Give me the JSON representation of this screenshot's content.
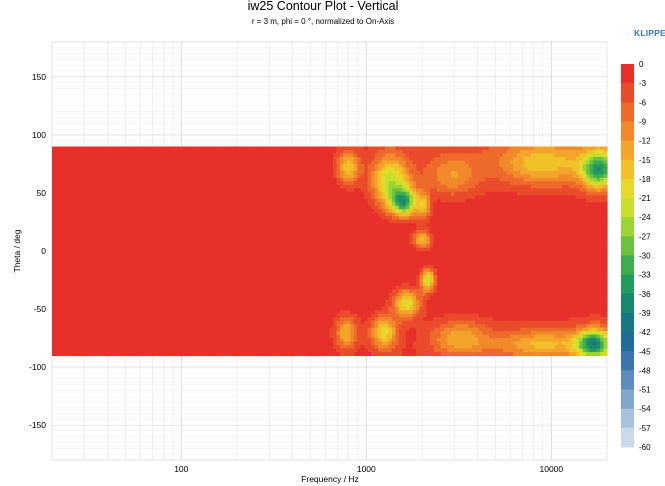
{
  "chart_data": {
    "type": "heatmap",
    "title": "iw25 Contour Plot - Vertical",
    "subtitle": "r = 3 m, phi = 0 °, normalized to On-Axis",
    "xlabel": "Frequency / Hz",
    "ylabel": "Theta / deg",
    "x_scale": "log",
    "xlim": [
      20,
      20000
    ],
    "ylim": [
      -180,
      180
    ],
    "grid": true,
    "x_ticks": [
      "100",
      "1000",
      "10000"
    ],
    "y_ticks": [
      "150",
      "100",
      "50",
      "0",
      "-50",
      "-100",
      "-150"
    ],
    "data_extent": {
      "freq_hz": [
        20,
        20000
      ],
      "theta_deg": [
        -90,
        90
      ]
    },
    "colorbar": {
      "labels": [
        "0",
        "-3",
        "-6",
        "-9",
        "-12",
        "-15",
        "-18",
        "-21",
        "-24",
        "-27",
        "-30",
        "-33",
        "-36",
        "-39",
        "-42",
        "-45",
        "-48",
        "-51",
        "-54",
        "-57",
        "-60"
      ],
      "colors": [
        "#e8302a",
        "#ea4b2a",
        "#ee6a2a",
        "#f1882a",
        "#f3a42a",
        "#f2c12a",
        "#e6d92b",
        "#c8df2e",
        "#9cd335",
        "#6cc240",
        "#3fad4d",
        "#239a5e",
        "#1a8870",
        "#1a7884",
        "#1f6c98",
        "#3d74ab",
        "#5f8cbd",
        "#83a6cc",
        "#a8c1dc",
        "#cbdaeb"
      ]
    },
    "features": [
      {
        "freq_hz": 1600,
        "theta_deg": 42,
        "level_db": -39
      },
      {
        "freq_hz": 2100,
        "theta_deg": 38,
        "level_db": -18
      },
      {
        "freq_hz": 2150,
        "theta_deg": -25,
        "level_db": -27
      },
      {
        "freq_hz": 1650,
        "theta_deg": -45,
        "level_db": -21
      },
      {
        "freq_hz": 1200,
        "theta_deg": -70,
        "level_db": -21
      },
      {
        "freq_hz": 18000,
        "theta_deg": 70,
        "level_db": -39
      },
      {
        "freq_hz": 17000,
        "theta_deg": -80,
        "level_db": -45
      },
      {
        "freq_hz": 2000,
        "theta_deg": 10,
        "level_db": -12
      }
    ]
  },
  "brand": {
    "text": "KLIPPEL"
  }
}
